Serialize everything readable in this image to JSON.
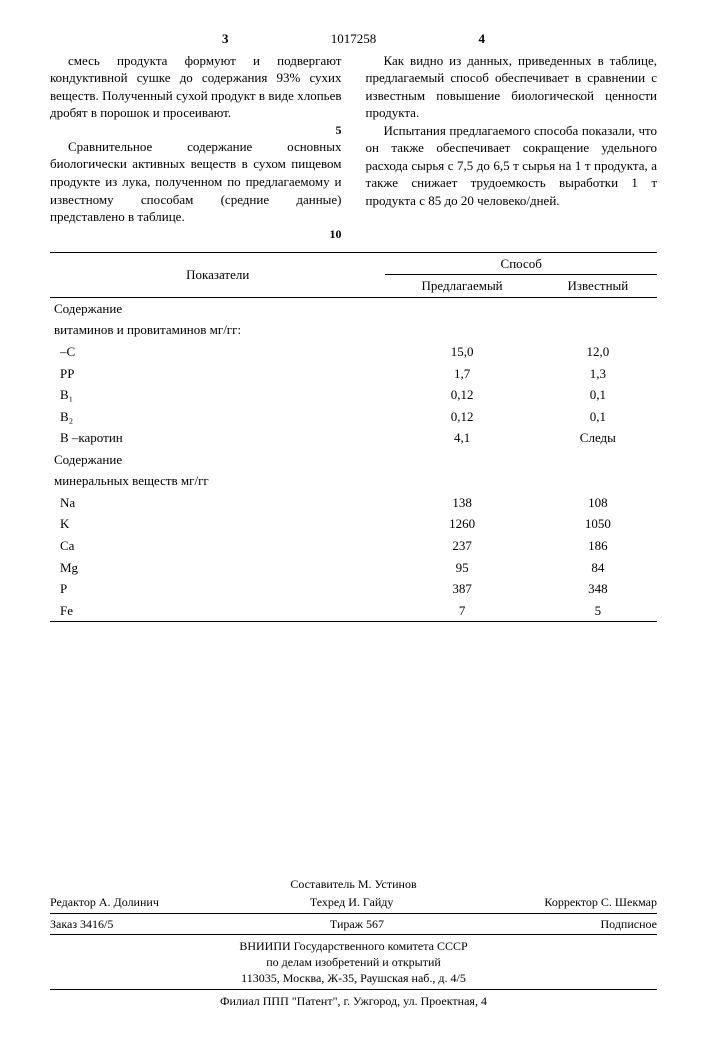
{
  "header": {
    "left_page_col": "3",
    "doc_number": "1017258",
    "right_page_col": "4"
  },
  "left_column": {
    "p1": "смесь продукта формуют и подвергают кондуктивной сушке до содержания 93% сухих веществ. Полученный сухой продукт в виде хлопьев дробят в порошок и просеивают.",
    "p2": "Сравнительное содержание основных биологически активных веществ в сухом пищевом продукте из лука, полученном по предлагаемому и известному способам (средние данные) представлено в таблице.",
    "ln5": "5",
    "ln10": "10"
  },
  "right_column": {
    "p1": "Как видно из данных, приведенных в таблице, предлагаемый способ обеспечивает в сравнении с известным повышение биологической ценности продукта.",
    "p2": "Испытания предлагаемого способа показали, что он также обеспечивает сокращение удельного расхода сырья с 7,5 до 6,5 т сырья на 1 т продукта, а также снижает трудоемкость выработки 1 т продукта с 85 до 20 человеко/дней."
  },
  "table": {
    "head_indicator": "Показатели",
    "head_method": "Способ",
    "head_proposed": "Предлагаемый",
    "head_known": "Известный",
    "group1": "Содержание",
    "group1b": "витаминов и провитаминов мг/гг:",
    "rows1": [
      {
        "label": "–С",
        "v1": "15,0",
        "v2": "12,0"
      },
      {
        "label": "РР",
        "v1": "1,7",
        "v2": "1,3"
      },
      {
        "label": "В₁",
        "v1": "0,12",
        "v2": "0,1"
      },
      {
        "label": "В₂",
        "v1": "0,12",
        "v2": "0,1"
      },
      {
        "label": "В –каротин",
        "v1": "4,1",
        "v2": "Следы"
      }
    ],
    "group2": "Содержание",
    "group2b": "минеральных веществ мг/гг",
    "rows2": [
      {
        "label": "Na",
        "v1": "138",
        "v2": "108"
      },
      {
        "label": "K",
        "v1": "1260",
        "v2": "1050"
      },
      {
        "label": "Ca",
        "v1": "237",
        "v2": "186"
      },
      {
        "label": "Mg",
        "v1": "95",
        "v2": "84"
      },
      {
        "label": "P",
        "v1": "387",
        "v2": "348"
      },
      {
        "label": "Fe",
        "v1": "7",
        "v2": "5"
      }
    ]
  },
  "credits": {
    "compiler": "Составитель М. Устинов",
    "editor": "Редактор  А. Долинич",
    "techred": "Техред И. Гайду",
    "corrector": "Корректор С. Шекмар",
    "order": "Заказ 3416/5",
    "tirage": "Тираж 567",
    "sub": "Подписное",
    "org1": "ВНИИПИ Государственного комитета СССР",
    "org2": "по делам изобретений и открытий",
    "addr1": "113035, Москва, Ж-35, Раушская наб., д. 4/5",
    "branch": "Филиал ППП \"Патент\", г. Ужгород, ул. Проектная, 4"
  }
}
